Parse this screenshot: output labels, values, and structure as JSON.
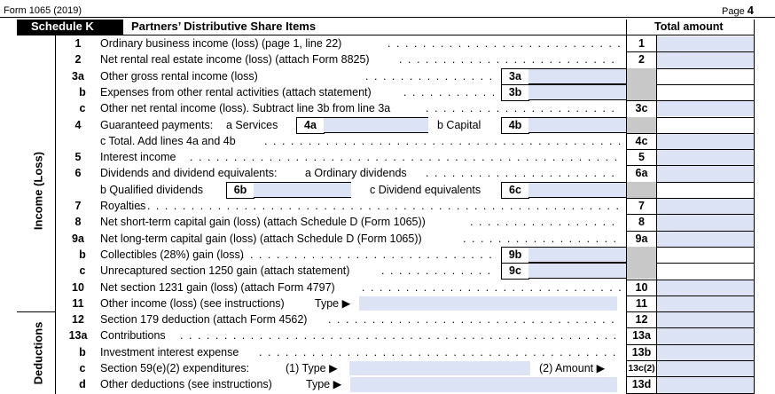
{
  "header": {
    "form_id": "Form 1065 (2019)",
    "page": "Page 4"
  },
  "schedule": {
    "tag": "Schedule K",
    "title": "Partners’ Distributive Share Items",
    "total_header": "Total amount"
  },
  "sections": {
    "income": "Income (Loss)",
    "deductions": "Deductions"
  },
  "lines": [
    {
      "num": "1",
      "text": "Ordinary business income (loss) (page 1, line 22)",
      "col": "1"
    },
    {
      "num": "2",
      "text": "Net rental real estate income (loss) (attach Form 8825)",
      "col": "2"
    },
    {
      "num": "3a",
      "text": "Other gross rental income (loss)",
      "box": "3a"
    },
    {
      "num": "b",
      "text": "Expenses from other rental activities (attach statement)",
      "box": "3b"
    },
    {
      "num": "c",
      "text": "Other net rental income (loss). Subtract line 3b from line 3a",
      "col": "3c"
    },
    {
      "num": "4",
      "text": "Guaranteed payments:",
      "sub_a_label": "a Services",
      "box_a": "4a",
      "sub_b_label": "b Capital",
      "box_b": "4b"
    },
    {
      "num": "",
      "text": "c Total. Add lines 4a and 4b",
      "col": "4c"
    },
    {
      "num": "5",
      "text": "Interest income",
      "col": "5"
    },
    {
      "num": "6",
      "text": "Dividends and dividend equivalents:",
      "sub_a_label": "a Ordinary dividends",
      "col": "6a"
    },
    {
      "num": "",
      "text": "b Qualified dividends",
      "box_a": "6b",
      "sub_c_label": "c Dividend equivalents",
      "box_c": "6c"
    },
    {
      "num": "7",
      "text": "Royalties",
      "col": "7"
    },
    {
      "num": "8",
      "text": "Net short-term capital gain (loss) (attach Schedule D (Form 1065))",
      "col": "8"
    },
    {
      "num": "9a",
      "text": "Net long-term capital gain (loss) (attach Schedule D (Form 1065))",
      "col": "9a"
    },
    {
      "num": "b",
      "text": "Collectibles (28%) gain (loss)",
      "box": "9b"
    },
    {
      "num": "c",
      "text": "Unrecaptured section 1250 gain (attach statement)",
      "box": "9c"
    },
    {
      "num": "10",
      "text": "Net section 1231 gain (loss) (attach Form 4797)",
      "col": "10"
    },
    {
      "num": "11",
      "text": "Other income (loss) (see instructions)",
      "type_label": "Type ▶",
      "col": "11"
    },
    {
      "num": "12",
      "text": "Section 179 deduction (attach Form 4562)",
      "col": "12"
    },
    {
      "num": "13a",
      "text": "Contributions",
      "col": "13a"
    },
    {
      "num": "b",
      "text": "Investment interest expense",
      "col": "13b"
    },
    {
      "num": "c",
      "text": "Section 59(e)(2) expenditures:",
      "type1_label": "(1) Type ▶",
      "amount_label": "(2) Amount ▶",
      "col": "13c(2)"
    },
    {
      "num": "d",
      "text": "Other deductions (see instructions)",
      "type_label": "Type ▶",
      "col": "13d"
    }
  ]
}
